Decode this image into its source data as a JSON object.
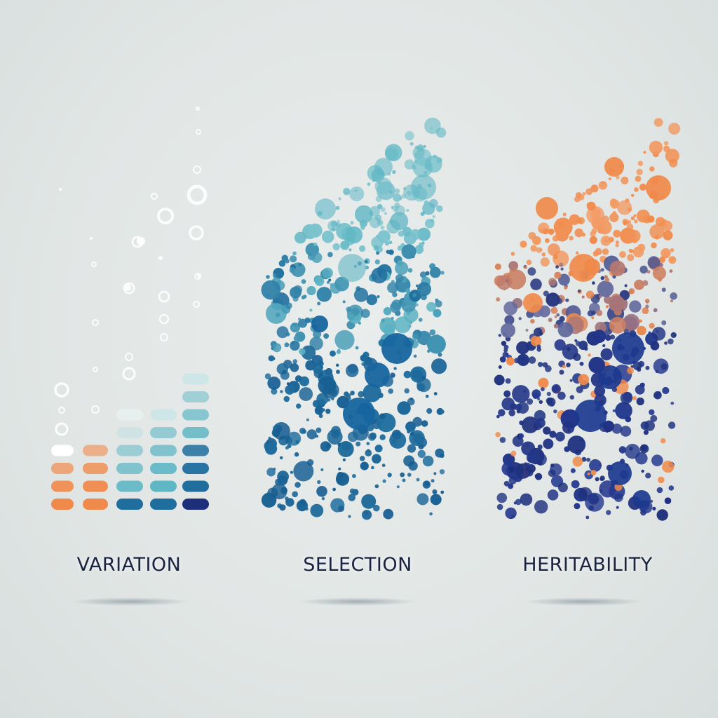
{
  "labels": {
    "variation": "VARIATION",
    "selection": "SELECTION",
    "heritability": "HERITABILITY"
  },
  "colors": {
    "background": "#e3e8e7",
    "orange": "#f08a4b",
    "teal": "#5fb6c4",
    "blue": "#1f6e9e",
    "navy": "#1d2f7a",
    "label_text": "#1a2340"
  }
}
